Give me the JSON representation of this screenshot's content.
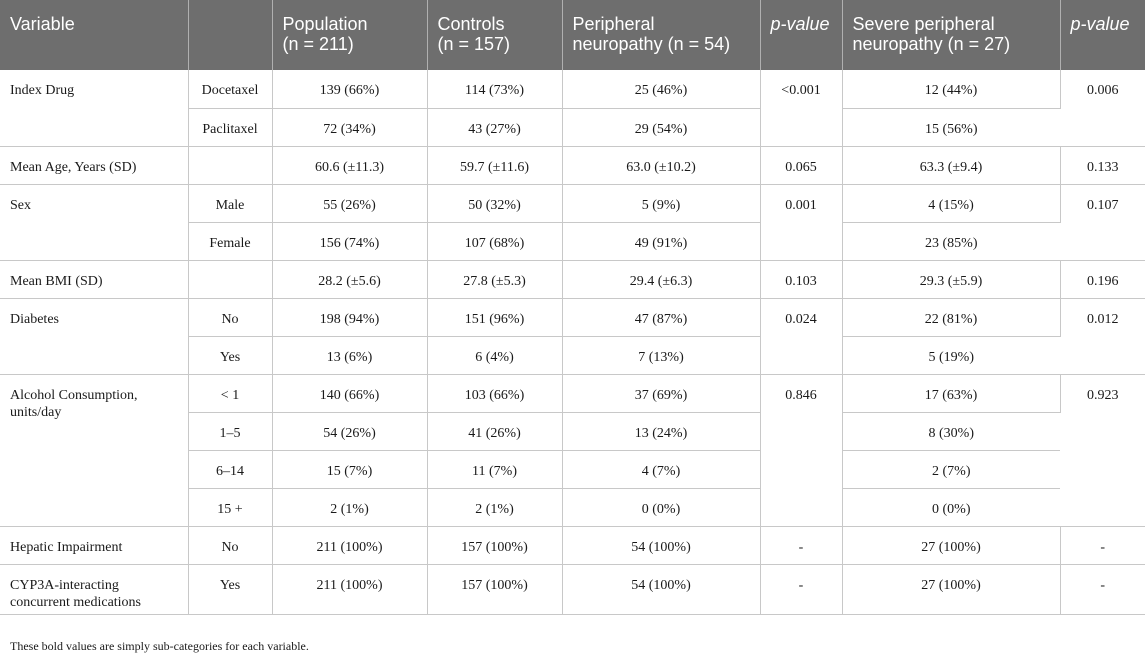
{
  "headers": [
    {
      "line1": "Variable",
      "line2": ""
    },
    {
      "line1": "",
      "line2": ""
    },
    {
      "line1": "Population",
      "line2": "(n = 211)"
    },
    {
      "line1": "Controls",
      "line2": "(n = 157)"
    },
    {
      "line1": "Peripheral",
      "line2": "neuropathy (n = 54)"
    },
    {
      "line1": "p-value",
      "line2": ""
    },
    {
      "line1": "Severe peripheral",
      "line2": "neuropathy (n = 27)"
    },
    {
      "line1": "p-value",
      "line2": ""
    }
  ],
  "rows": {
    "index_drug": {
      "label": "Index Drug",
      "p1": "<0.001",
      "p2": "0.006",
      "subs": [
        {
          "sub": "Docetaxel",
          "population": "139 (66%)",
          "controls": "114 (73%)",
          "pn": "25 (46%)",
          "spn": "12 (44%)"
        },
        {
          "sub": "Paclitaxel",
          "population": "72 (34%)",
          "controls": "43 (27%)",
          "pn": "29 (54%)",
          "spn": "15 (56%)"
        }
      ]
    },
    "age": {
      "label": "Mean Age, Years (SD)",
      "p1": "0.065",
      "p2": "0.133",
      "subs": [
        {
          "sub": "",
          "population": "60.6 (±11.3)",
          "controls": "59.7 (±11.6)",
          "pn": "63.0 (±10.2)",
          "spn": "63.3 (±9.4)"
        }
      ]
    },
    "sex": {
      "label": "Sex",
      "p1": "0.001",
      "p2": "0.107",
      "subs": [
        {
          "sub": "Male",
          "population": "55 (26%)",
          "controls": "50 (32%)",
          "pn": "5 (9%)",
          "spn": "4 (15%)"
        },
        {
          "sub": "Female",
          "population": "156 (74%)",
          "controls": "107 (68%)",
          "pn": "49 (91%)",
          "spn": "23 (85%)"
        }
      ]
    },
    "bmi": {
      "label": "Mean BMI (SD)",
      "p1": "0.103",
      "p2": "0.196",
      "subs": [
        {
          "sub": "",
          "population": "28.2 (±5.6)",
          "controls": "27.8 (±5.3)",
          "pn": "29.4 (±6.3)",
          "spn": "29.3 (±5.9)"
        }
      ]
    },
    "diabetes": {
      "label": "Diabetes",
      "p1": "0.024",
      "p2": "0.012",
      "subs": [
        {
          "sub": "No",
          "population": "198 (94%)",
          "controls": "151 (96%)",
          "pn": "47 (87%)",
          "spn": "22 (81%)"
        },
        {
          "sub": "Yes",
          "population": "13 (6%)",
          "controls": "6 (4%)",
          "pn": "7 (13%)",
          "spn": "5 (19%)"
        }
      ]
    },
    "alcohol": {
      "label_line1": "Alcohol Consumption,",
      "label_line2": "units/day",
      "p1": "0.846",
      "p2": "0.923",
      "subs": [
        {
          "sub": "< 1",
          "population": "140 (66%)",
          "controls": "103 (66%)",
          "pn": "37 (69%)",
          "spn": "17 (63%)"
        },
        {
          "sub": "1–5",
          "population": "54 (26%)",
          "controls": "41 (26%)",
          "pn": "13 (24%)",
          "spn": "8 (30%)"
        },
        {
          "sub": "6–14",
          "population": "15 (7%)",
          "controls": "11 (7%)",
          "pn": "4 (7%)",
          "spn": "2 (7%)"
        },
        {
          "sub": "15 +",
          "population": "2 (1%)",
          "controls": "2 (1%)",
          "pn": "0 (0%)",
          "spn": "0 (0%)"
        }
      ]
    },
    "hepatic": {
      "label": "Hepatic Impairment",
      "p1": "-",
      "p2": "-",
      "subs": [
        {
          "sub": "No",
          "population": "211 (100%)",
          "controls": "157 (100%)",
          "pn": "54 (100%)",
          "spn": "27 (100%)"
        }
      ]
    },
    "cyp3a": {
      "label_line1": "CYP3A-interacting",
      "label_line2": "concurrent medications",
      "p1": "-",
      "p2": "-",
      "subs": [
        {
          "sub": "Yes",
          "population": "211 (100%)",
          "controls": "157 (100%)",
          "pn": "54 (100%)",
          "spn": "27 (100%)"
        }
      ]
    }
  },
  "footnote": "These bold values are simply sub-categories for each variable."
}
